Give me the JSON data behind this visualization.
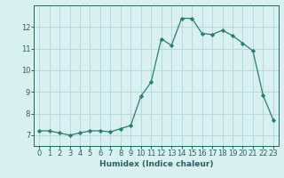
{
  "x": [
    0,
    1,
    2,
    3,
    4,
    5,
    6,
    7,
    8,
    9,
    10,
    11,
    12,
    13,
    14,
    15,
    16,
    17,
    18,
    19,
    20,
    21,
    22,
    23
  ],
  "y": [
    7.2,
    7.2,
    7.1,
    7.0,
    7.1,
    7.2,
    7.2,
    7.15,
    7.3,
    7.45,
    8.8,
    9.45,
    11.45,
    11.15,
    12.4,
    12.4,
    11.7,
    11.65,
    11.85,
    11.6,
    11.25,
    10.9,
    8.85,
    7.7
  ],
  "line_color": "#2a7d6f",
  "marker": "D",
  "marker_size": 2.2,
  "bg_color": "#d9f0f0",
  "grid_color": "#b8d8d8",
  "xlabel": "Humidex (Indice chaleur)",
  "ylim": [
    6.5,
    13.0
  ],
  "xlim": [
    -0.5,
    23.5
  ],
  "yticks": [
    7,
    8,
    9,
    10,
    11,
    12
  ],
  "xticks": [
    0,
    1,
    2,
    3,
    4,
    5,
    6,
    7,
    8,
    9,
    10,
    11,
    12,
    13,
    14,
    15,
    16,
    17,
    18,
    19,
    20,
    21,
    22,
    23
  ],
  "font_color": "#2a6060",
  "label_fontsize": 6.5,
  "tick_fontsize": 6.0,
  "linewidth": 0.9
}
